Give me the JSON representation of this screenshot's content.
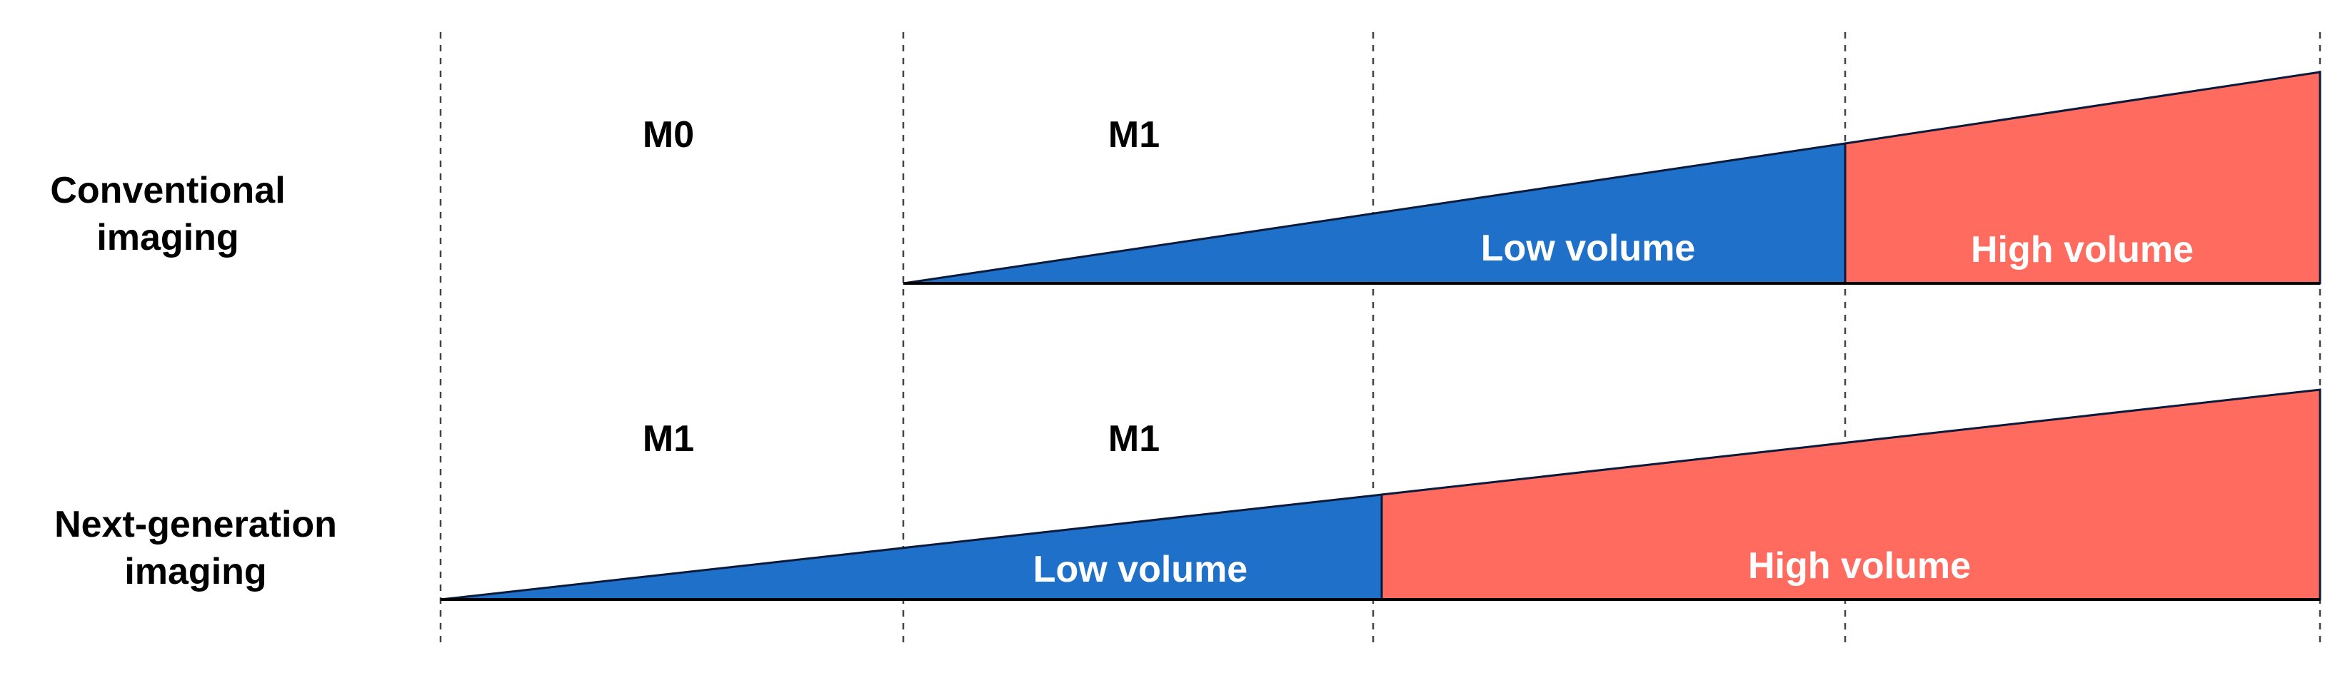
{
  "rows": [
    {
      "label_lines": [
        "Conventional",
        "imaging"
      ],
      "stage_labels": [
        "M0",
        "M1"
      ],
      "segments": [
        {
          "label": "Low volume",
          "color": "#1f70c8"
        },
        {
          "label": "High volume",
          "color": "#ff6b5e"
        }
      ]
    },
    {
      "label_lines": [
        "Next-generation",
        "imaging"
      ],
      "stage_labels": [
        "M1",
        "M1"
      ],
      "segments": [
        {
          "label": "Low volume",
          "color": "#1f70c8"
        },
        {
          "label": "High volume",
          "color": "#ff6b5e"
        }
      ]
    }
  ]
}
